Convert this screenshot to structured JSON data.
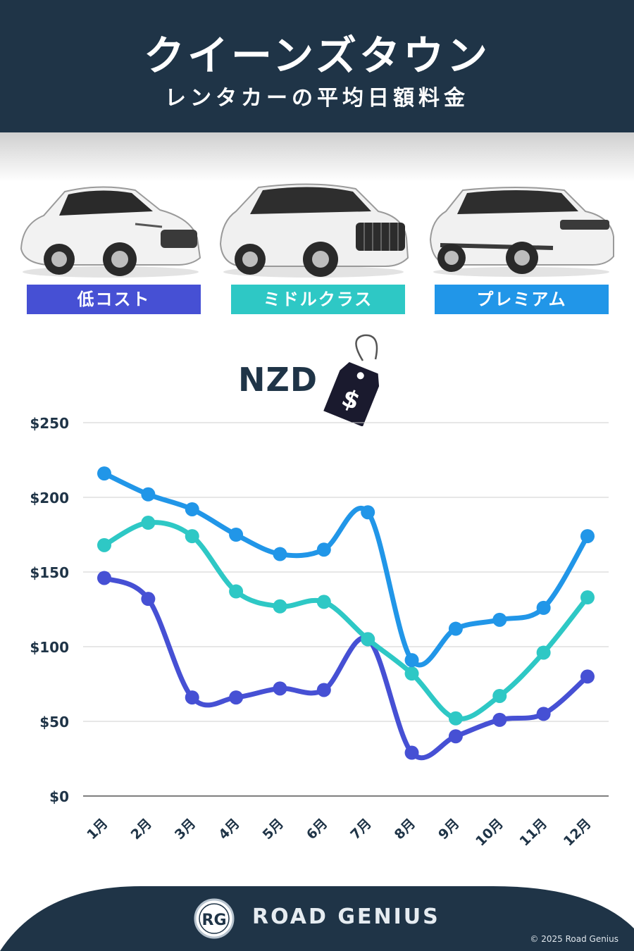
{
  "header": {
    "title": "クイーンズタウン",
    "subtitle": "レンタカーの平均日額料金"
  },
  "categories": [
    {
      "label": "低コスト",
      "color": "#4650d4"
    },
    {
      "label": "ミドルクラス",
      "color": "#2ec8c5"
    },
    {
      "label": "プレミアム",
      "color": "#2196e8"
    }
  ],
  "currency_label": "NZD",
  "tag_icon": "price-tag-icon",
  "tag_symbol": "$",
  "chart_data": {
    "type": "line",
    "categories": [
      "1月",
      "2月",
      "3月",
      "4月",
      "5月",
      "6月",
      "7月",
      "8月",
      "9月",
      "10月",
      "11月",
      "12月"
    ],
    "series": [
      {
        "name": "低コスト",
        "color": "#4650d4",
        "values": [
          146,
          132,
          66,
          66,
          72,
          71,
          105,
          29,
          40,
          51,
          55,
          80
        ]
      },
      {
        "name": "ミドルクラス",
        "color": "#2ec8c5",
        "values": [
          168,
          183,
          174,
          137,
          127,
          130,
          105,
          82,
          52,
          67,
          96,
          133
        ]
      },
      {
        "name": "プレミアム",
        "color": "#2196e8",
        "values": [
          216,
          202,
          192,
          175,
          162,
          165,
          190,
          91,
          112,
          118,
          126,
          174
        ]
      }
    ],
    "y_ticks": [
      "$0",
      "$50",
      "$100",
      "$150",
      "$200",
      "$250"
    ],
    "y_tick_values": [
      0,
      50,
      100,
      150,
      200,
      250
    ],
    "ylim": [
      0,
      250
    ],
    "grid": true
  },
  "footer": {
    "logo": "RG",
    "brand": "ROAD GENIUS",
    "copyright": "© 2025 Road Genius",
    "bg_color": "#1f3447"
  }
}
